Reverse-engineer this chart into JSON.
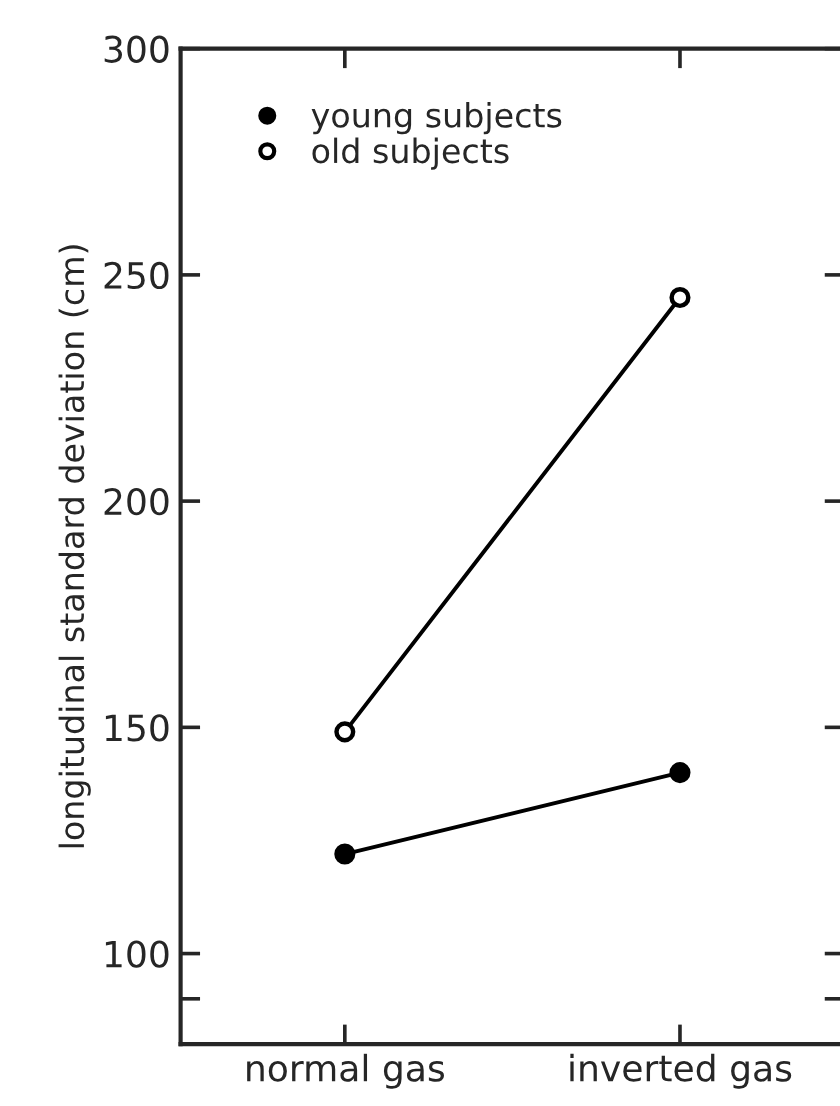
{
  "chart_data": {
    "type": "line",
    "ylabel": "longitudinal standard deviation (cm)",
    "categories": [
      "normal gas",
      "inverted gas"
    ],
    "series": [
      {
        "name": "young subjects",
        "color": "#000000",
        "values": [
          122,
          140
        ],
        "marker": "circle"
      },
      {
        "name": "old subjects",
        "color": "#000000",
        "values": [
          149,
          245
        ],
        "marker": "circle"
      }
    ],
    "ylim": [
      80,
      300
    ],
    "yticks": [
      {
        "value": 90,
        "label": null
      },
      100,
      150,
      200,
      250,
      300
    ],
    "legend": "top left",
    "grid": false
  }
}
